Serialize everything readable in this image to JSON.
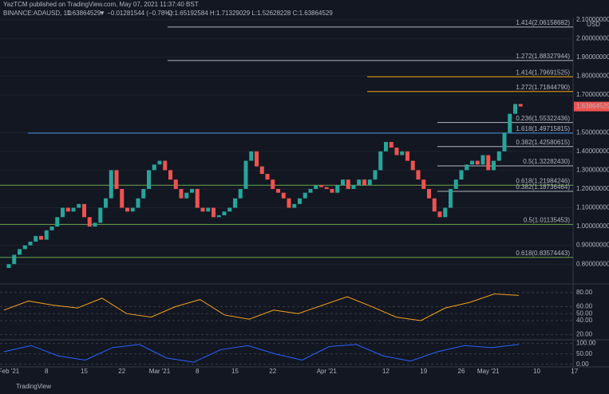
{
  "header": {
    "publisher": "YazTCM published on TradingView.com, May 07, 2021 11:37:40 BST",
    "symbol": "BINANCE:ADAUSD, 1D",
    "price": "1.63864529",
    "change": "▼ −0.01281544 (−0.78%)",
    "ohlc": "O:1.65192584 H:1.71329029 L:1.52628228 C:1.63864529"
  },
  "chart_data": {
    "type": "candlestick",
    "currency": "USD",
    "last_price_label": "1.63864529",
    "first_open": 0.78,
    "closes": [
      0.8,
      0.85,
      0.88,
      0.9,
      0.92,
      0.95,
      0.93,
      0.98,
      1.0,
      1.05,
      1.1,
      1.08,
      1.1,
      1.12,
      1.05,
      1.0,
      1.02,
      1.1,
      1.15,
      1.3,
      1.2,
      1.1,
      1.08,
      1.1,
      1.15,
      1.2,
      1.3,
      1.33,
      1.35,
      1.3,
      1.25,
      1.2,
      1.15,
      1.18,
      1.2,
      1.1,
      1.08,
      1.1,
      1.05,
      1.06,
      1.08,
      1.1,
      1.15,
      1.2,
      1.35,
      1.4,
      1.32,
      1.28,
      1.25,
      1.2,
      1.18,
      1.15,
      1.1,
      1.12,
      1.15,
      1.18,
      1.2,
      1.22,
      1.21,
      1.2,
      1.18,
      1.22,
      1.25,
      1.2,
      1.22,
      1.25,
      1.22,
      1.25,
      1.3,
      1.4,
      1.45,
      1.42,
      1.38,
      1.4,
      1.35,
      1.3,
      1.25,
      1.2,
      1.15,
      1.08,
      1.05,
      1.1,
      1.2,
      1.25,
      1.3,
      1.33,
      1.35,
      1.33,
      1.38,
      1.3,
      1.35,
      1.4,
      1.5,
      1.6,
      1.65192584,
      1.63864529
    ],
    "ylim": [
      0.699,
      2.112
    ],
    "yticks": [
      {
        "value": 2.1,
        "label": "2.10000000"
      },
      {
        "value": 2.0,
        "label": "2.00000000"
      },
      {
        "value": 1.9,
        "label": "1.90000000"
      },
      {
        "value": 1.8,
        "label": "1.80000000"
      },
      {
        "value": 1.7,
        "label": "1.70000000"
      },
      {
        "value": 1.5,
        "label": "1.50000000"
      },
      {
        "value": 1.4,
        "label": "1.40000000"
      },
      {
        "value": 1.3,
        "label": "1.30000000"
      },
      {
        "value": 1.2,
        "label": "1.20000000"
      },
      {
        "value": 1.1,
        "label": "1.10000000"
      },
      {
        "value": 1.0,
        "label": "1.00000000"
      },
      {
        "value": 0.9,
        "label": "0.90000000"
      },
      {
        "value": 0.8,
        "label": "0.80000000"
      }
    ],
    "fib_levels": [
      {
        "label": "1.414(2.06158682)",
        "value": 2.06158682,
        "color": "#b2b5be"
      },
      {
        "label": "1.272(1.88327944)",
        "value": 1.88327944,
        "color": "#b2b5be"
      },
      {
        "label": "1.414(1.79691525)",
        "value": 1.79691525,
        "color": "#f7a21b"
      },
      {
        "label": "1.272(1.71844790)",
        "value": 1.7184479,
        "color": "#f7a21b"
      },
      {
        "label": "0.236(1.55322436)",
        "value": 1.55322436,
        "color": "#b2b5be"
      },
      {
        "label": "1.618(1.49715815)",
        "value": 1.49715815,
        "color": "#4a90e2"
      },
      {
        "label": "0.382(1.42580615)",
        "value": 1.42580615,
        "color": "#b2b5be"
      },
      {
        "label": "0.5(1.32282430)",
        "value": 1.3228243,
        "color": "#b2b5be"
      },
      {
        "label": "0.618(1.21984246)",
        "value": 1.21984246,
        "color": "#6aa84f"
      },
      {
        "label": "0.382(1.18736464)",
        "value": 1.18736464,
        "color": "#b2b5be"
      },
      {
        "label": "0.5(1.01135453)",
        "value": 1.01135453,
        "color": "#6aa84f"
      },
      {
        "label": "0.618(0.83574443)",
        "value": 0.83574443,
        "color": "#6aa84f"
      }
    ],
    "x_labels": [
      "Feb '21",
      "8",
      "15",
      "22",
      "Mar '21",
      "8",
      "15",
      "22",
      "Apr '21",
      "12",
      "19",
      "26",
      "May '21",
      "10",
      "17"
    ],
    "rsi": {
      "values": [
        55,
        68,
        62,
        58,
        72,
        50,
        45,
        60,
        70,
        48,
        42,
        55,
        50,
        62,
        74,
        60,
        45,
        40,
        58,
        66,
        78,
        76
      ],
      "ylim": [
        15,
        90
      ],
      "yticks": [
        {
          "value": 80,
          "label": "80.00"
        },
        {
          "value": 60,
          "label": "60.00"
        },
        {
          "value": 50,
          "label": "50.00"
        },
        {
          "value": 40,
          "label": "40.00"
        },
        {
          "value": 20,
          "label": "20.00"
        }
      ]
    },
    "stoch": {
      "values": [
        60,
        90,
        40,
        20,
        80,
        95,
        30,
        10,
        70,
        90,
        50,
        20,
        85,
        95,
        40,
        15,
        60,
        90,
        80,
        95
      ],
      "ylim": [
        -5,
        110
      ],
      "yticks": [
        {
          "value": 100,
          "label": "100.00"
        },
        {
          "value": 50,
          "label": "50.00"
        },
        {
          "value": 0,
          "label": "0.00"
        }
      ]
    }
  },
  "footer": {
    "brand": "TradingView"
  }
}
